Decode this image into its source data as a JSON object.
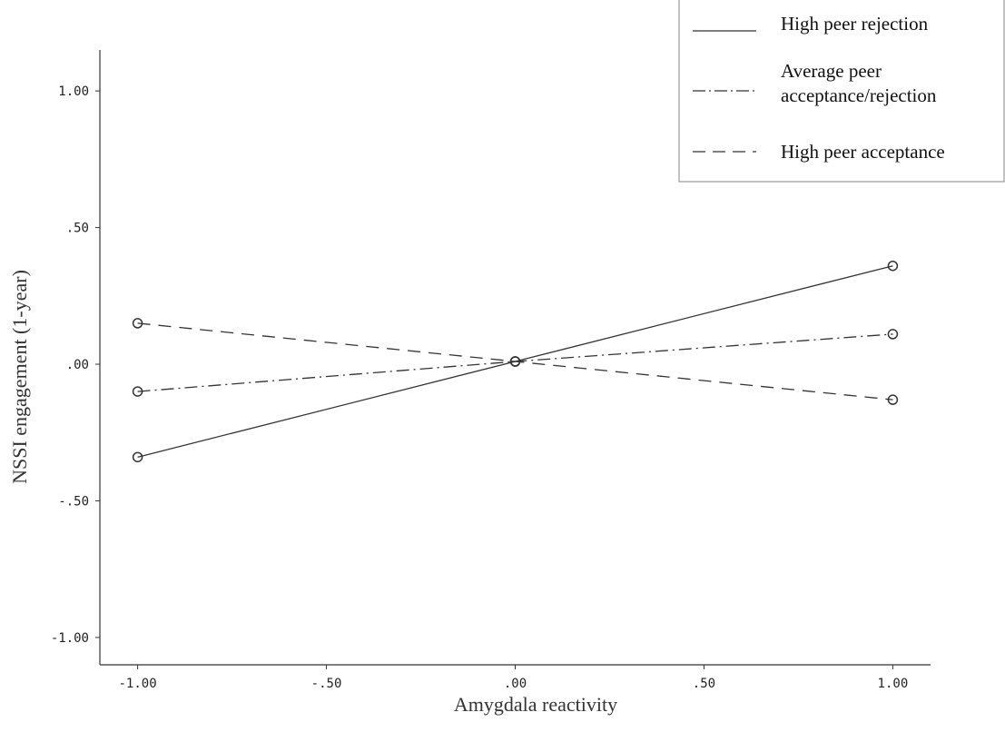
{
  "chart_data": {
    "type": "line",
    "title": "",
    "xlabel": "Amygdala reactivity",
    "ylabel": "NSSI engagement (1-year)",
    "x": [
      -1.0,
      0.0,
      1.0
    ],
    "xlim": [
      -1.1,
      1.1
    ],
    "ylim": [
      -1.1,
      1.15
    ],
    "xticks": [
      -1.0,
      -0.5,
      0.0,
      0.5,
      1.0
    ],
    "xtick_labels": [
      "-1.00",
      "-.50",
      ".00",
      ".50",
      "1.00"
    ],
    "yticks": [
      -1.0,
      -0.5,
      0.0,
      0.5,
      1.0
    ],
    "ytick_labels": [
      "-1.00",
      "-.50",
      ".00",
      ".50",
      "1.00"
    ],
    "grid": false,
    "legend_position": "top-right",
    "series": [
      {
        "name": "High peer rejection",
        "line_style": "solid",
        "values": [
          -0.34,
          0.01,
          0.36
        ]
      },
      {
        "name": "Average peer acceptance/rejection",
        "line_style": "dash-dot",
        "values": [
          -0.1,
          0.01,
          0.11
        ]
      },
      {
        "name": "High peer acceptance",
        "line_style": "dashed",
        "values": [
          0.15,
          0.01,
          -0.13
        ]
      }
    ],
    "colors": {
      "line": "#333333",
      "axis": "#333333",
      "legend_border": "#999999"
    }
  }
}
